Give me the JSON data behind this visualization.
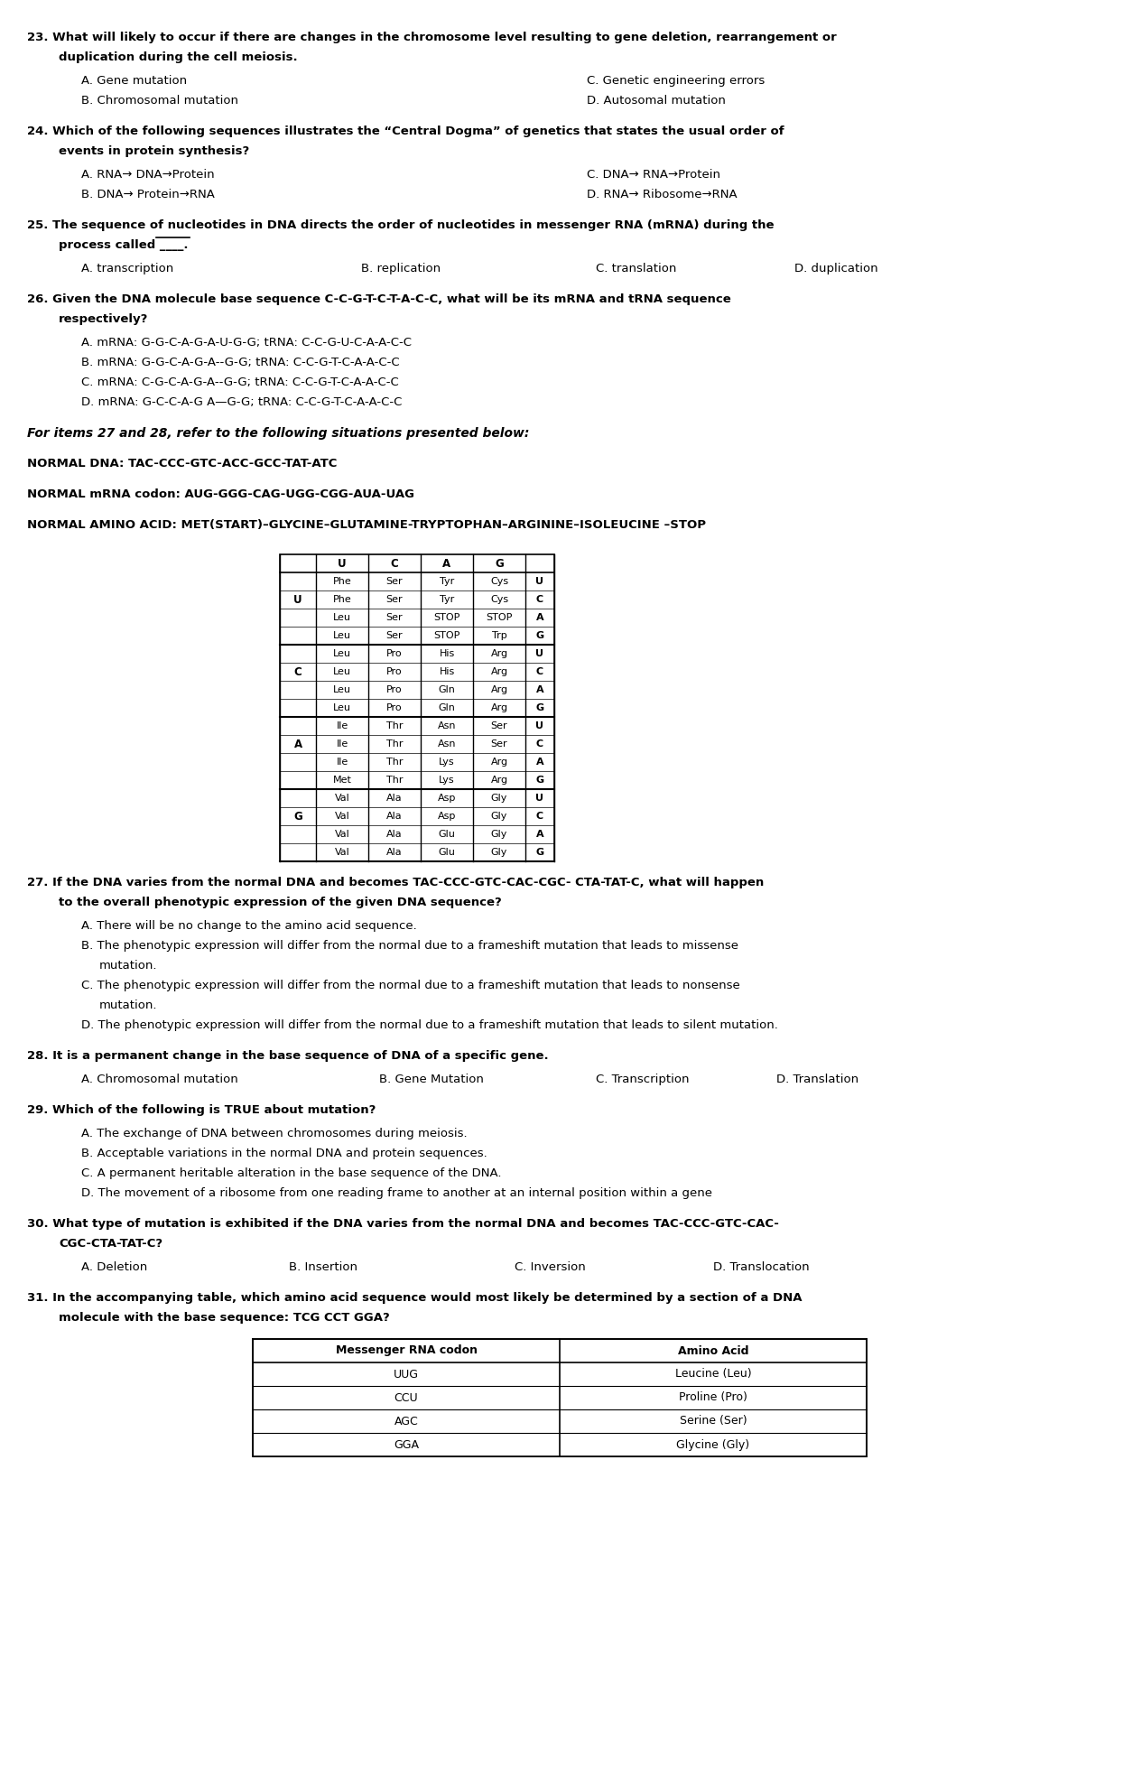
{
  "bg_color": "#ffffff",
  "text_color": "#000000",
  "q23": {
    "stem": "23. What will likely to occur if there are changes in the chromosome level resulting to gene deletion, rearrangement or",
    "stem2": "      duplication during the cell meiosis.",
    "A": "A. Gene mutation",
    "B": "B. Chromosomal mutation",
    "C": "C. Genetic engineering errors",
    "D": "D. Autosomal mutation"
  },
  "q24": {
    "stem": "24. Which of the following sequences illustrates the “Central Dogma” of genetics that states the usual order of",
    "stem2": "      events in protein synthesis?",
    "A": "A. RNA→ DNA→Protein",
    "B": "B. DNA→ Protein→RNA",
    "C": "C. DNA→ RNA→Protein",
    "D": "D. RNA→ Ribosome→RNA"
  },
  "q25": {
    "stem": "25. The sequence of nucleotides in DNA directs the order of nucleotides in messenger RNA (mRNA) during the",
    "stem2": "      process called ____.",
    "A": "A. transcription",
    "B": "B. replication",
    "C": "C. translation",
    "D": "D. duplication"
  },
  "q26": {
    "stem": "26. Given the DNA molecule base sequence C-C-G-T-C-T-A-C-C, what will be its mRNA and tRNA sequence",
    "stem2": "      respectively?",
    "A": "A. mRNA: G-G-C-A-G-A-U-G-G; tRNA: C-C-G-U-C-A-A-C-C",
    "B": "B. mRNA: G-G-C-A-G-A--G-G; tRNA: C-C-G-T-C-A-A-C-C",
    "C": "C. mRNA: C-G-C-A-G-A--G-G; tRNA: C-C-G-T-C-A-A-C-C",
    "D": "D. mRNA: G-C-C-A-G A—G-G; tRNA: C-C-G-T-C-A-A-C-C"
  },
  "for_items": "For items 27 and 28, refer to the following situations presented below:",
  "normal_dna": "NORMAL DNA: TAC-CCC-GTC-ACC-GCC-TAT-ATC",
  "normal_mrna": "NORMAL mRNA codon: AUG-GGG-CAG-UGG-CGG-AUA-UAG",
  "normal_amino": "NORMAL AMINO ACID: MET(START)–GLYCINE–GLUTAMINE-TRYPTOPHAN–ARGININE–ISOLEUCINE –STOP",
  "codon_table_rows": [
    [
      "U",
      "Phe",
      "Ser",
      "Tyr",
      "Cys",
      "U"
    ],
    [
      "",
      "Phe",
      "Ser",
      "Tyr",
      "Cys",
      "C"
    ],
    [
      "",
      "Leu",
      "Ser",
      "STOP",
      "STOP",
      "A"
    ],
    [
      "",
      "Leu",
      "Ser",
      "STOP",
      "Trp",
      "G"
    ],
    [
      "C",
      "Leu",
      "Pro",
      "His",
      "Arg",
      "U"
    ],
    [
      "",
      "Leu",
      "Pro",
      "His",
      "Arg",
      "C"
    ],
    [
      "",
      "Leu",
      "Pro",
      "Gln",
      "Arg",
      "A"
    ],
    [
      "",
      "Leu",
      "Pro",
      "Gln",
      "Arg",
      "G"
    ],
    [
      "A",
      "Ile",
      "Thr",
      "Asn",
      "Ser",
      "U"
    ],
    [
      "",
      "Ile",
      "Thr",
      "Asn",
      "Ser",
      "C"
    ],
    [
      "",
      "Ile",
      "Thr",
      "Lys",
      "Arg",
      "A"
    ],
    [
      "",
      "Met",
      "Thr",
      "Lys",
      "Arg",
      "G"
    ],
    [
      "G",
      "Val",
      "Ala",
      "Asp",
      "Gly",
      "U"
    ],
    [
      "",
      "Val",
      "Ala",
      "Asp",
      "Gly",
      "C"
    ],
    [
      "",
      "Val",
      "Ala",
      "Glu",
      "Gly",
      "A"
    ],
    [
      "",
      "Val",
      "Ala",
      "Glu",
      "Gly",
      "G"
    ]
  ],
  "q27": {
    "stem": "27. If the DNA varies from the normal DNA and becomes TAC-CCC-GTC-CAC-CGC- CTA-TAT-C, what will happen",
    "stem2": "     to the overall phenotypic expression of the given DNA sequence?",
    "A": "A. There will be no change to the amino acid sequence.",
    "B1": "B. The phenotypic expression will differ from the normal due to a frameshift mutation that leads to missense",
    "B2": "    mutation.",
    "C1": "C. The phenotypic expression will differ from the normal due to a frameshift mutation that leads to nonsense",
    "C2": "    mutation.",
    "D": "D. The phenotypic expression will differ from the normal due to a frameshift mutation that leads to silent mutation."
  },
  "q28": {
    "stem": "28. It is a permanent change in the base sequence of DNA of a specific gene.",
    "A": "A. Chromosomal mutation",
    "B": "B. Gene Mutation",
    "C": "C. Transcription",
    "D": "D. Translation"
  },
  "q29": {
    "stem": "29. Which of the following is TRUE about mutation?",
    "A": "A. The exchange of DNA between chromosomes during meiosis.",
    "B": "B. Acceptable variations in the normal DNA and protein sequences.",
    "C": "C. A permanent heritable alteration in the base sequence of the DNA.",
    "D": "D. The movement of a ribosome from one reading frame to another at an internal position within a gene"
  },
  "q30": {
    "stem": "30. What type of mutation is exhibited if the DNA varies from the normal DNA and becomes TAC-CCC-GTC-CAC-",
    "stem2": "     CGC-CTA-TAT-C?",
    "A": "A. Deletion",
    "B": "B. Insertion",
    "C": "C. Inversion",
    "D": "D. Translocation"
  },
  "q31": {
    "stem": "31. In the accompanying table, which amino acid sequence would most likely be determined by a section of a DNA",
    "stem2": "     molecule with the base sequence: TCG CCT GGA?",
    "col1_header": "Messenger RNA codon",
    "col2_header": "Amino Acid",
    "rows": [
      [
        "UUG",
        "Leucine (Leu)"
      ],
      [
        "CCU",
        "Proline (Pro)"
      ],
      [
        "AGC",
        "Serine (Ser)"
      ],
      [
        "GGA",
        "Glycine (Gly)"
      ]
    ]
  }
}
